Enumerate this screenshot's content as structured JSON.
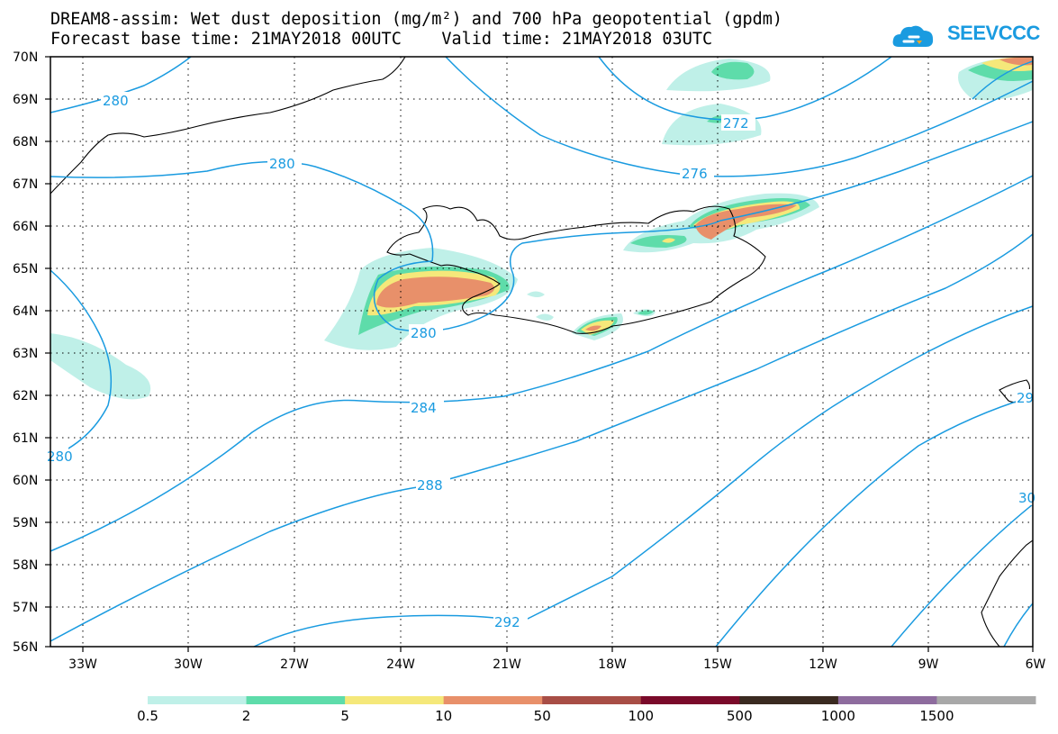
{
  "title": {
    "line1": "DREAM8-assim: Wet dust deposition (mg/m²) and 700 hPa geopotential (gpdm)",
    "line2": "Forecast base time: 21MAY2018 00UTC    Valid time: 21MAY2018 03UTC"
  },
  "logo": {
    "text": "SEEVCCC",
    "icon": "cloud-icon",
    "color": "#1a9be0"
  },
  "map": {
    "lat_labels": [
      "70N",
      "69N",
      "68N",
      "67N",
      "66N",
      "65N",
      "64N",
      "63N",
      "62N",
      "61N",
      "60N",
      "59N",
      "58N",
      "57N",
      "56N"
    ],
    "lon_labels": [
      "33W",
      "30W",
      "27W",
      "24W",
      "21W",
      "18W",
      "15W",
      "12W",
      "9W",
      "6W"
    ],
    "contour_labels": [
      "280",
      "280",
      "280",
      "272",
      "276",
      "280",
      "284",
      "288",
      "292",
      "280",
      "29",
      "30"
    ],
    "contour_color": "#1a9be0"
  },
  "colorbar": {
    "labels": [
      "0.5",
      "2",
      "5",
      "10",
      "50",
      "100",
      "500",
      "1000",
      "1500"
    ],
    "colors": [
      "#bff0e8",
      "#5edcaa",
      "#f5e87a",
      "#e8906a",
      "#a84e46",
      "#7a0a2a",
      "#3a2a20",
      "#8e6c9e",
      "#a8a8a8"
    ]
  }
}
